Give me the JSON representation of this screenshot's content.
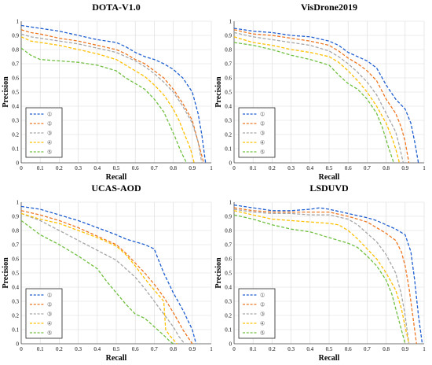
{
  "chart_data": [
    {
      "type": "line",
      "title": "DOTA-V1.0",
      "xlabel": "Recall",
      "ylabel": "Precision",
      "xlim": [
        0,
        1
      ],
      "ylim": [
        0,
        1
      ],
      "xticks": [
        "0",
        "0.1",
        "0.2",
        "0.3",
        "0.4",
        "0.5",
        "0.6",
        "0.7",
        "0.8",
        "0.9",
        "1"
      ],
      "yticks": [
        "0",
        "0.1",
        "0.2",
        "0.3",
        "0.4",
        "0.5",
        "0.6",
        "0.7",
        "0.8",
        "0.9",
        "1"
      ],
      "grid": true,
      "legend_position": "bottom-left",
      "series": [
        {
          "name": "①",
          "color": "#1f5fd0",
          "x": [
            0,
            0.05,
            0.1,
            0.2,
            0.3,
            0.4,
            0.5,
            0.55,
            0.6,
            0.65,
            0.7,
            0.75,
            0.8,
            0.85,
            0.9,
            0.93,
            0.95,
            0.97
          ],
          "y": [
            0.97,
            0.96,
            0.95,
            0.93,
            0.9,
            0.87,
            0.85,
            0.82,
            0.78,
            0.75,
            0.73,
            0.7,
            0.66,
            0.6,
            0.5,
            0.35,
            0.2,
            0
          ]
        },
        {
          "name": "②",
          "color": "#ee7722",
          "x": [
            0,
            0.05,
            0.1,
            0.2,
            0.3,
            0.4,
            0.5,
            0.55,
            0.6,
            0.65,
            0.7,
            0.75,
            0.8,
            0.85,
            0.9,
            0.93,
            0.96
          ],
          "y": [
            0.94,
            0.92,
            0.91,
            0.88,
            0.86,
            0.83,
            0.8,
            0.77,
            0.73,
            0.7,
            0.65,
            0.6,
            0.52,
            0.42,
            0.3,
            0.15,
            0
          ]
        },
        {
          "name": "③",
          "color": "#a6a6a6",
          "x": [
            0,
            0.05,
            0.1,
            0.2,
            0.3,
            0.4,
            0.5,
            0.55,
            0.6,
            0.65,
            0.7,
            0.75,
            0.8,
            0.85,
            0.9,
            0.93,
            0.95
          ],
          "y": [
            0.91,
            0.89,
            0.88,
            0.86,
            0.84,
            0.81,
            0.78,
            0.75,
            0.72,
            0.68,
            0.63,
            0.57,
            0.5,
            0.4,
            0.28,
            0.15,
            0
          ]
        },
        {
          "name": "④",
          "color": "#ffc000",
          "x": [
            0,
            0.05,
            0.1,
            0.2,
            0.3,
            0.4,
            0.5,
            0.55,
            0.6,
            0.65,
            0.7,
            0.75,
            0.8,
            0.83,
            0.86,
            0.89,
            0.91
          ],
          "y": [
            0.89,
            0.86,
            0.85,
            0.83,
            0.8,
            0.77,
            0.73,
            0.69,
            0.65,
            0.61,
            0.55,
            0.48,
            0.38,
            0.3,
            0.2,
            0.1,
            0
          ]
        },
        {
          "name": "⑤",
          "color": "#70c040",
          "x": [
            0,
            0.05,
            0.1,
            0.2,
            0.3,
            0.4,
            0.5,
            0.55,
            0.6,
            0.65,
            0.7,
            0.75,
            0.78,
            0.81,
            0.84,
            0.87
          ],
          "y": [
            0.81,
            0.76,
            0.73,
            0.72,
            0.71,
            0.69,
            0.65,
            0.6,
            0.56,
            0.52,
            0.45,
            0.36,
            0.27,
            0.18,
            0.08,
            0
          ]
        }
      ]
    },
    {
      "type": "line",
      "title": "VisDrone2019",
      "xlabel": "Recall",
      "ylabel": "Precision",
      "xlim": [
        0,
        1
      ],
      "ylim": [
        0,
        1
      ],
      "xticks": [
        "0",
        "0.1",
        "0.2",
        "0.3",
        "0.4",
        "0.5",
        "0.6",
        "0.7",
        "0.8",
        "0.9",
        "1"
      ],
      "yticks": [
        "0",
        "0.1",
        "0.2",
        "0.3",
        "0.4",
        "0.5",
        "0.6",
        "0.7",
        "0.8",
        "0.9",
        "1"
      ],
      "grid": true,
      "legend_position": "bottom-left",
      "series": [
        {
          "name": "①",
          "color": "#1f5fd0",
          "x": [
            0,
            0.1,
            0.2,
            0.3,
            0.4,
            0.5,
            0.55,
            0.6,
            0.65,
            0.7,
            0.75,
            0.8,
            0.85,
            0.9,
            0.93,
            0.95,
            0.97
          ],
          "y": [
            0.95,
            0.93,
            0.92,
            0.9,
            0.89,
            0.86,
            0.83,
            0.78,
            0.75,
            0.72,
            0.67,
            0.55,
            0.45,
            0.38,
            0.28,
            0.15,
            0
          ]
        },
        {
          "name": "②",
          "color": "#ee7722",
          "x": [
            0,
            0.1,
            0.2,
            0.3,
            0.4,
            0.5,
            0.55,
            0.6,
            0.65,
            0.7,
            0.75,
            0.8,
            0.85,
            0.88,
            0.9,
            0.92
          ],
          "y": [
            0.94,
            0.91,
            0.9,
            0.88,
            0.86,
            0.83,
            0.79,
            0.74,
            0.7,
            0.65,
            0.58,
            0.45,
            0.35,
            0.25,
            0.15,
            0
          ]
        },
        {
          "name": "③",
          "color": "#a6a6a6",
          "x": [
            0,
            0.1,
            0.2,
            0.3,
            0.4,
            0.5,
            0.55,
            0.6,
            0.65,
            0.7,
            0.75,
            0.8,
            0.85,
            0.87,
            0.89
          ],
          "y": [
            0.92,
            0.89,
            0.87,
            0.85,
            0.83,
            0.79,
            0.75,
            0.7,
            0.64,
            0.57,
            0.48,
            0.35,
            0.22,
            0.12,
            0
          ]
        },
        {
          "name": "④",
          "color": "#ffc000",
          "x": [
            0,
            0.1,
            0.2,
            0.3,
            0.4,
            0.5,
            0.55,
            0.6,
            0.65,
            0.7,
            0.75,
            0.8,
            0.83,
            0.85,
            0.87
          ],
          "y": [
            0.89,
            0.85,
            0.83,
            0.8,
            0.78,
            0.75,
            0.71,
            0.65,
            0.58,
            0.5,
            0.4,
            0.28,
            0.18,
            0.1,
            0
          ]
        },
        {
          "name": "⑤",
          "color": "#70c040",
          "x": [
            0,
            0.1,
            0.2,
            0.3,
            0.4,
            0.5,
            0.55,
            0.6,
            0.65,
            0.7,
            0.75,
            0.78,
            0.81,
            0.84
          ],
          "y": [
            0.85,
            0.83,
            0.8,
            0.76,
            0.73,
            0.69,
            0.62,
            0.56,
            0.52,
            0.45,
            0.35,
            0.25,
            0.12,
            0
          ]
        }
      ]
    },
    {
      "type": "line",
      "title": "UCAS-AOD",
      "xlabel": "Recall",
      "ylabel": "Precision",
      "xlim": [
        0,
        1
      ],
      "ylim": [
        0,
        1
      ],
      "xticks": [
        "0",
        "0.1",
        "0.2",
        "0.3",
        "0.4",
        "0.5",
        "0.6",
        "0.7",
        "0.8",
        "0.9",
        "1"
      ],
      "yticks": [
        "0",
        "0.1",
        "0.2",
        "0.3",
        "0.4",
        "0.5",
        "0.6",
        "0.7",
        "0.8",
        "0.9",
        "1"
      ],
      "grid": true,
      "legend_position": "bottom-left",
      "series": [
        {
          "name": "①",
          "color": "#1f5fd0",
          "x": [
            0,
            0.1,
            0.2,
            0.3,
            0.4,
            0.5,
            0.55,
            0.6,
            0.65,
            0.7,
            0.72,
            0.75,
            0.8,
            0.85,
            0.9,
            0.92
          ],
          "y": [
            0.97,
            0.95,
            0.91,
            0.87,
            0.82,
            0.77,
            0.74,
            0.72,
            0.7,
            0.67,
            0.6,
            0.5,
            0.36,
            0.24,
            0.1,
            0
          ]
        },
        {
          "name": "②",
          "color": "#ee7722",
          "x": [
            0,
            0.1,
            0.2,
            0.3,
            0.4,
            0.5,
            0.55,
            0.6,
            0.65,
            0.7,
            0.75,
            0.8,
            0.83,
            0.85,
            0.88,
            0.9
          ],
          "y": [
            0.94,
            0.91,
            0.87,
            0.82,
            0.76,
            0.7,
            0.64,
            0.57,
            0.5,
            0.42,
            0.33,
            0.22,
            0.15,
            0.1,
            0.04,
            0
          ]
        },
        {
          "name": "③",
          "color": "#a6a6a6",
          "x": [
            0,
            0.1,
            0.2,
            0.3,
            0.4,
            0.5,
            0.55,
            0.6,
            0.65,
            0.7,
            0.75,
            0.8,
            0.83,
            0.86
          ],
          "y": [
            0.92,
            0.87,
            0.8,
            0.73,
            0.66,
            0.59,
            0.53,
            0.47,
            0.39,
            0.3,
            0.21,
            0.12,
            0.05,
            0
          ]
        },
        {
          "name": "④",
          "color": "#ffc000",
          "x": [
            0,
            0.1,
            0.2,
            0.3,
            0.4,
            0.5,
            0.55,
            0.6,
            0.65,
            0.7,
            0.75,
            0.76,
            0.78,
            0.8,
            0.82
          ],
          "y": [
            0.92,
            0.88,
            0.85,
            0.8,
            0.75,
            0.69,
            0.63,
            0.55,
            0.46,
            0.38,
            0.3,
            0.1,
            0.06,
            0.03,
            0
          ]
        },
        {
          "name": "⑤",
          "color": "#70c040",
          "x": [
            0,
            0.1,
            0.2,
            0.3,
            0.4,
            0.45,
            0.5,
            0.55,
            0.6,
            0.65,
            0.7,
            0.75,
            0.78,
            0.8
          ],
          "y": [
            0.87,
            0.77,
            0.7,
            0.62,
            0.53,
            0.44,
            0.36,
            0.28,
            0.21,
            0.18,
            0.12,
            0.06,
            0.02,
            0
          ]
        }
      ]
    },
    {
      "type": "line",
      "title": "LSDUVD",
      "xlabel": "Recall",
      "ylabel": "Precision",
      "xlim": [
        0,
        1
      ],
      "ylim": [
        0,
        1
      ],
      "xticks": [
        "0",
        "0.1",
        "0.2",
        "0.3",
        "0.4",
        "0.5",
        "0.6",
        "0.7",
        "0.8",
        "0.9",
        "1"
      ],
      "yticks": [
        "0",
        "0.1",
        "0.2",
        "0.3",
        "0.4",
        "0.5",
        "0.6",
        "0.7",
        "0.8",
        "0.9",
        "1"
      ],
      "grid": true,
      "legend_position": "bottom-left",
      "series": [
        {
          "name": "①",
          "color": "#1f5fd0",
          "x": [
            0,
            0.1,
            0.2,
            0.3,
            0.4,
            0.45,
            0.5,
            0.6,
            0.7,
            0.75,
            0.8,
            0.85,
            0.9,
            0.93,
            0.95,
            0.97,
            0.99
          ],
          "y": [
            0.98,
            0.96,
            0.94,
            0.94,
            0.95,
            0.96,
            0.95,
            0.92,
            0.89,
            0.87,
            0.84,
            0.81,
            0.77,
            0.65,
            0.45,
            0.2,
            0
          ]
        },
        {
          "name": "②",
          "color": "#ee7722",
          "x": [
            0,
            0.1,
            0.2,
            0.3,
            0.4,
            0.5,
            0.6,
            0.7,
            0.8,
            0.85,
            0.88,
            0.9,
            0.92,
            0.94,
            0.96
          ],
          "y": [
            0.96,
            0.94,
            0.93,
            0.93,
            0.93,
            0.93,
            0.9,
            0.86,
            0.78,
            0.73,
            0.65,
            0.55,
            0.4,
            0.2,
            0
          ]
        },
        {
          "name": "③",
          "color": "#a6a6a6",
          "x": [
            0,
            0.1,
            0.2,
            0.3,
            0.4,
            0.5,
            0.6,
            0.65,
            0.7,
            0.75,
            0.8,
            0.85,
            0.88,
            0.9,
            0.92
          ],
          "y": [
            0.95,
            0.93,
            0.92,
            0.92,
            0.91,
            0.91,
            0.88,
            0.84,
            0.78,
            0.72,
            0.63,
            0.5,
            0.35,
            0.2,
            0
          ]
        },
        {
          "name": "④",
          "color": "#ffc000",
          "x": [
            0,
            0.1,
            0.2,
            0.3,
            0.4,
            0.5,
            0.55,
            0.6,
            0.65,
            0.7,
            0.75,
            0.8,
            0.85,
            0.88,
            0.9,
            0.92
          ],
          "y": [
            0.94,
            0.91,
            0.88,
            0.87,
            0.86,
            0.85,
            0.84,
            0.8,
            0.74,
            0.67,
            0.6,
            0.5,
            0.38,
            0.25,
            0.12,
            0
          ]
        },
        {
          "name": "⑤",
          "color": "#70c040",
          "x": [
            0,
            0.1,
            0.2,
            0.3,
            0.4,
            0.5,
            0.55,
            0.6,
            0.65,
            0.7,
            0.75,
            0.8,
            0.83,
            0.85,
            0.88,
            0.9
          ],
          "y": [
            0.91,
            0.88,
            0.84,
            0.81,
            0.79,
            0.75,
            0.73,
            0.71,
            0.68,
            0.62,
            0.55,
            0.45,
            0.35,
            0.25,
            0.1,
            0
          ]
        }
      ]
    }
  ]
}
